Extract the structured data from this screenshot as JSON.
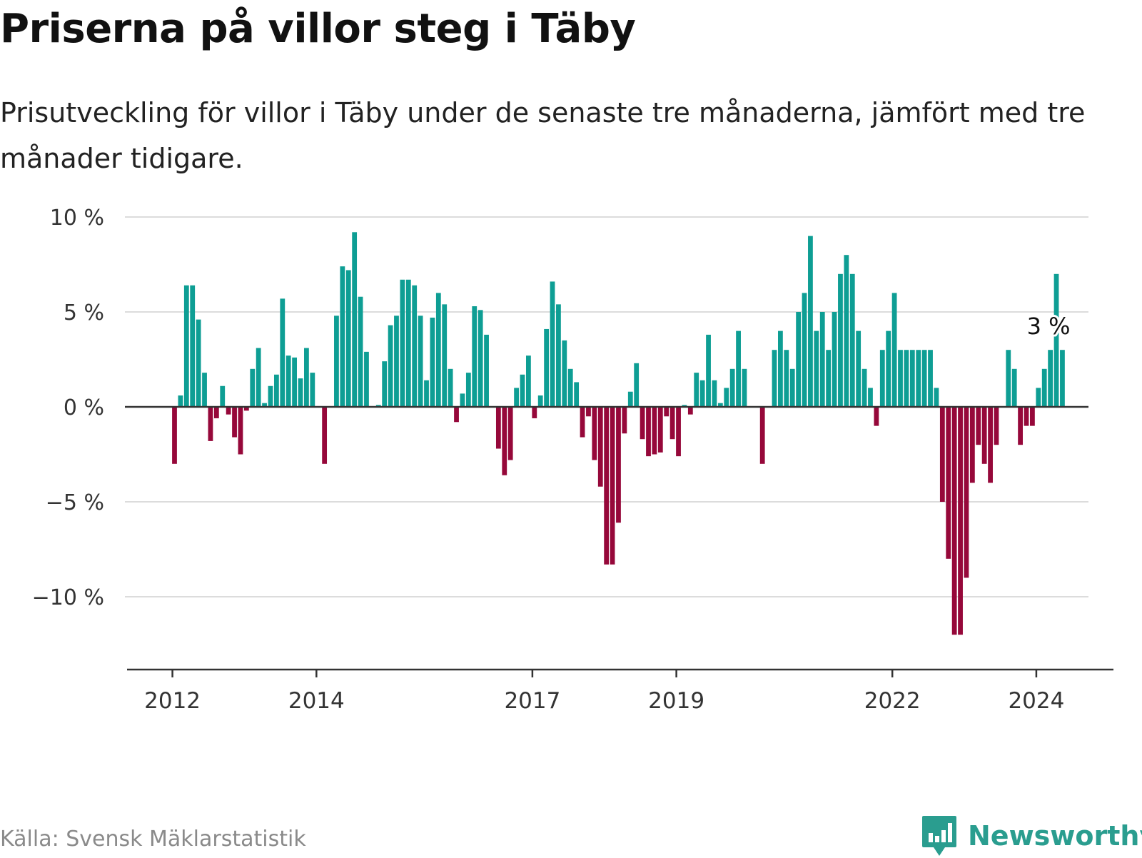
{
  "header": {
    "title": "Priserna på villor steg i Täby",
    "subtitle": "Prisutveckling för villor i Täby under de senaste tre månaderna, jämfört med tre månader tidigare."
  },
  "footer": {
    "source": "Källa: Svensk Mäklarstatistik",
    "brand": "Newsworthy"
  },
  "colors": {
    "positive": "#0e9e94",
    "negative": "#96083a",
    "grid": "#dcdcdc",
    "axis": "#333333",
    "brand": "#2a9d8f"
  },
  "chart_data": {
    "type": "bar",
    "title": "Priserna på villor steg i Täby",
    "xlabel": "",
    "ylabel": "",
    "ylim": [
      -13,
      10
    ],
    "yticks": [
      10,
      5,
      0,
      -5,
      -10
    ],
    "ytick_labels": [
      "10 %",
      "5 %",
      "0 %",
      "−5 %",
      "−10 %"
    ],
    "x_start": "2012-01",
    "xticks": [
      {
        "label": "2012",
        "index": 0
      },
      {
        "label": "2014",
        "index": 24
      },
      {
        "label": "2017",
        "index": 60
      },
      {
        "label": "2019",
        "index": 84
      },
      {
        "label": "2022",
        "index": 120
      },
      {
        "label": "2024",
        "index": 144
      }
    ],
    "values": [
      -3.0,
      0.6,
      6.4,
      6.4,
      4.6,
      1.8,
      -1.8,
      -0.6,
      1.1,
      -0.4,
      -1.6,
      -2.5,
      -0.2,
      2.0,
      3.1,
      0.2,
      1.1,
      1.7,
      5.7,
      2.7,
      2.6,
      1.5,
      3.1,
      1.8,
      0.0,
      -3.0,
      0.0,
      4.8,
      7.4,
      7.2,
      9.2,
      5.8,
      2.9,
      0.0,
      0.1,
      2.4,
      4.3,
      4.8,
      6.7,
      6.7,
      6.4,
      4.8,
      1.4,
      4.7,
      6.0,
      5.4,
      2.0,
      -0.8,
      0.7,
      1.8,
      5.3,
      5.1,
      3.8,
      0.0,
      -2.2,
      -3.6,
      -2.8,
      1.0,
      1.7,
      2.7,
      -0.6,
      0.6,
      4.1,
      6.6,
      5.4,
      3.5,
      2.0,
      1.3,
      -1.6,
      -0.5,
      -2.8,
      -4.2,
      -8.3,
      -8.3,
      -6.1,
      -1.4,
      0.8,
      2.3,
      -1.7,
      -2.6,
      -2.5,
      -2.4,
      -0.5,
      -1.7,
      -2.6,
      0.1,
      -0.4,
      1.8,
      1.4,
      3.8,
      1.4,
      0.2,
      1.0,
      2.0,
      4.0,
      2.0,
      0.0,
      0.0,
      -3.0,
      0.0,
      3.0,
      4.0,
      3.0,
      2.0,
      5.0,
      6.0,
      9.0,
      4.0,
      5.0,
      3.0,
      5.0,
      7.0,
      8.0,
      7.0,
      4.0,
      2.0,
      1.0,
      -1.0,
      3.0,
      4.0,
      6.0,
      3.0,
      3.0,
      3.0,
      3.0,
      3.0,
      3.0,
      1.0,
      -5.0,
      -8.0,
      -12.0,
      -12.0,
      -9.0,
      -4.0,
      -2.0,
      -3.0,
      -4.0,
      -2.0,
      0.0,
      3.0,
      2.0,
      -2.0,
      -1.0,
      -1.0,
      1.0,
      2.0,
      3.0,
      7.0,
      3.0
    ],
    "annotation": {
      "text": "3 %",
      "index": 146
    }
  }
}
